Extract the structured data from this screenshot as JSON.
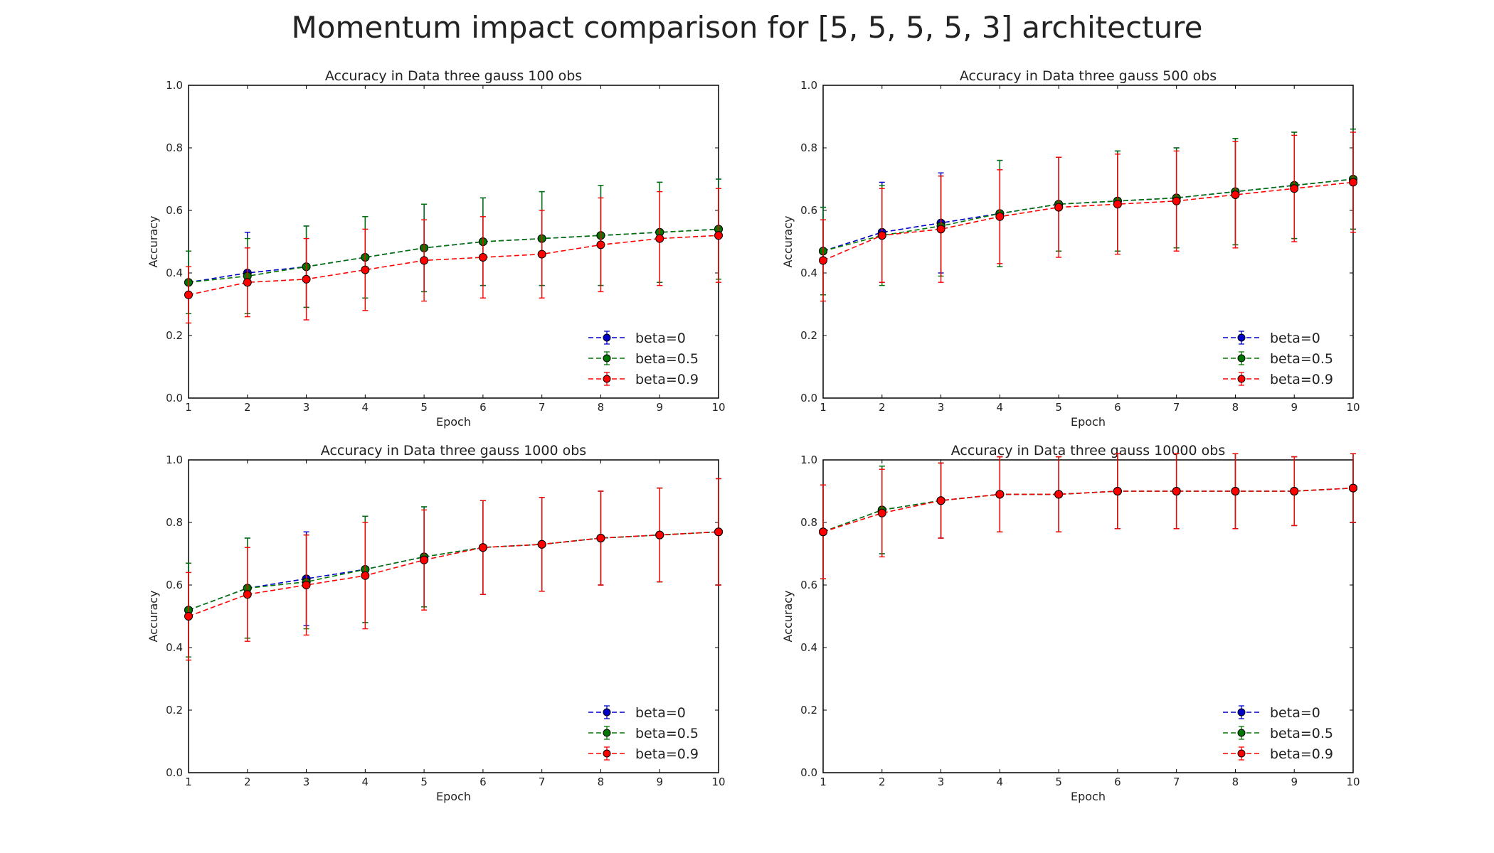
{
  "suptitle": "Momentum impact comparison for [5, 5, 5, 5, 3] architecture",
  "chart_data": [
    {
      "type": "line",
      "title": "Accuracy in Data three gauss 100 obs",
      "xlabel": "Epoch",
      "ylabel": "Accuracy",
      "xlim": [
        1,
        10
      ],
      "ylim": [
        0,
        1.0
      ],
      "x": [
        1,
        2,
        3,
        4,
        5,
        6,
        7,
        8,
        9,
        10
      ],
      "xticks": [
        "1",
        "2",
        "3",
        "4",
        "5",
        "6",
        "7",
        "8",
        "9",
        "10"
      ],
      "yticks": [
        "0.0",
        "0.2",
        "0.4",
        "0.6",
        "0.8",
        "1.0"
      ],
      "legend_position": "lower-right",
      "series": [
        {
          "name": "beta=0",
          "color": "#0000cc",
          "values": [
            0.37,
            0.4,
            0.42,
            0.45,
            0.48,
            0.5,
            0.51,
            0.52,
            0.53,
            0.54
          ],
          "errors": [
            0.1,
            0.13,
            0.13,
            0.13,
            0.14,
            0.14,
            0.15,
            0.16,
            0.16,
            0.16
          ]
        },
        {
          "name": "beta=0.5",
          "color": "#007700",
          "values": [
            0.37,
            0.39,
            0.42,
            0.45,
            0.48,
            0.5,
            0.51,
            0.52,
            0.53,
            0.54
          ],
          "errors": [
            0.1,
            0.12,
            0.13,
            0.13,
            0.14,
            0.14,
            0.15,
            0.16,
            0.16,
            0.16
          ]
        },
        {
          "name": "beta=0.9",
          "color": "#ff0000",
          "values": [
            0.33,
            0.37,
            0.38,
            0.41,
            0.44,
            0.45,
            0.46,
            0.49,
            0.51,
            0.52
          ],
          "errors": [
            0.09,
            0.11,
            0.13,
            0.13,
            0.13,
            0.13,
            0.14,
            0.15,
            0.15,
            0.15
          ]
        }
      ]
    },
    {
      "type": "line",
      "title": "Accuracy in Data three gauss 500 obs",
      "xlabel": "Epoch",
      "ylabel": "Accuracy",
      "xlim": [
        1,
        10
      ],
      "ylim": [
        0,
        1.0
      ],
      "x": [
        1,
        2,
        3,
        4,
        5,
        6,
        7,
        8,
        9,
        10
      ],
      "xticks": [
        "1",
        "2",
        "3",
        "4",
        "5",
        "6",
        "7",
        "8",
        "9",
        "10"
      ],
      "yticks": [
        "0.0",
        "0.2",
        "0.4",
        "0.6",
        "0.8",
        "1.0"
      ],
      "legend_position": "lower-right",
      "series": [
        {
          "name": "beta=0",
          "color": "#0000cc",
          "values": [
            0.47,
            0.53,
            0.56,
            0.59,
            0.62,
            0.63,
            0.64,
            0.66,
            0.68,
            0.7
          ],
          "errors": [
            0.14,
            0.16,
            0.16,
            0.17,
            0.15,
            0.16,
            0.16,
            0.17,
            0.17,
            0.16
          ]
        },
        {
          "name": "beta=0.5",
          "color": "#007700",
          "values": [
            0.47,
            0.52,
            0.55,
            0.59,
            0.62,
            0.63,
            0.64,
            0.66,
            0.68,
            0.7
          ],
          "errors": [
            0.14,
            0.16,
            0.16,
            0.17,
            0.15,
            0.16,
            0.16,
            0.17,
            0.17,
            0.16
          ]
        },
        {
          "name": "beta=0.9",
          "color": "#ff0000",
          "values": [
            0.44,
            0.52,
            0.54,
            0.58,
            0.61,
            0.62,
            0.63,
            0.65,
            0.67,
            0.69
          ],
          "errors": [
            0.13,
            0.15,
            0.17,
            0.15,
            0.16,
            0.16,
            0.16,
            0.17,
            0.17,
            0.16
          ]
        }
      ]
    },
    {
      "type": "line",
      "title": "Accuracy in Data three gauss 1000 obs",
      "xlabel": "Epoch",
      "ylabel": "Accuracy",
      "xlim": [
        1,
        10
      ],
      "ylim": [
        0,
        1.0
      ],
      "x": [
        1,
        2,
        3,
        4,
        5,
        6,
        7,
        8,
        9,
        10
      ],
      "xticks": [
        "1",
        "2",
        "3",
        "4",
        "5",
        "6",
        "7",
        "8",
        "9",
        "10"
      ],
      "yticks": [
        "0.0",
        "0.2",
        "0.4",
        "0.6",
        "0.8",
        "1.0"
      ],
      "legend_position": "lower-right",
      "series": [
        {
          "name": "beta=0",
          "color": "#0000cc",
          "values": [
            0.52,
            0.59,
            0.62,
            0.65,
            0.69,
            0.72,
            0.73,
            0.75,
            0.76,
            0.77
          ],
          "errors": [
            0.15,
            0.16,
            0.15,
            0.17,
            0.16,
            0.15,
            0.15,
            0.15,
            0.15,
            0.17
          ]
        },
        {
          "name": "beta=0.5",
          "color": "#007700",
          "values": [
            0.52,
            0.59,
            0.61,
            0.65,
            0.69,
            0.72,
            0.73,
            0.75,
            0.76,
            0.77
          ],
          "errors": [
            0.15,
            0.16,
            0.15,
            0.17,
            0.16,
            0.15,
            0.15,
            0.15,
            0.15,
            0.17
          ]
        },
        {
          "name": "beta=0.9",
          "color": "#ff0000",
          "values": [
            0.5,
            0.57,
            0.6,
            0.63,
            0.68,
            0.72,
            0.73,
            0.75,
            0.76,
            0.77
          ],
          "errors": [
            0.14,
            0.15,
            0.16,
            0.17,
            0.16,
            0.15,
            0.15,
            0.15,
            0.15,
            0.17
          ]
        }
      ]
    },
    {
      "type": "line",
      "title": "Accuracy in Data three gauss 10000 obs",
      "xlabel": "Epoch",
      "ylabel": "Accuracy",
      "xlim": [
        1,
        10
      ],
      "ylim": [
        0,
        1.0
      ],
      "x": [
        1,
        2,
        3,
        4,
        5,
        6,
        7,
        8,
        9,
        10
      ],
      "xticks": [
        "1",
        "2",
        "3",
        "4",
        "5",
        "6",
        "7",
        "8",
        "9",
        "10"
      ],
      "yticks": [
        "0.0",
        "0.2",
        "0.4",
        "0.6",
        "0.8",
        "1.0"
      ],
      "legend_position": "lower-right",
      "series": [
        {
          "name": "beta=0",
          "color": "#0000cc",
          "values": [
            0.77,
            0.84,
            0.87,
            0.89,
            0.89,
            0.9,
            0.9,
            0.9,
            0.9,
            0.91
          ],
          "errors": [
            0.15,
            0.14,
            0.12,
            0.12,
            0.12,
            0.12,
            0.12,
            0.12,
            0.11,
            0.11
          ]
        },
        {
          "name": "beta=0.5",
          "color": "#007700",
          "values": [
            0.77,
            0.84,
            0.87,
            0.89,
            0.89,
            0.9,
            0.9,
            0.9,
            0.9,
            0.91
          ],
          "errors": [
            0.15,
            0.14,
            0.12,
            0.12,
            0.12,
            0.12,
            0.12,
            0.12,
            0.11,
            0.11
          ]
        },
        {
          "name": "beta=0.9",
          "color": "#ff0000",
          "values": [
            0.77,
            0.83,
            0.87,
            0.89,
            0.89,
            0.9,
            0.9,
            0.9,
            0.9,
            0.91
          ],
          "errors": [
            0.15,
            0.14,
            0.12,
            0.12,
            0.12,
            0.12,
            0.12,
            0.12,
            0.11,
            0.11
          ]
        }
      ]
    }
  ]
}
